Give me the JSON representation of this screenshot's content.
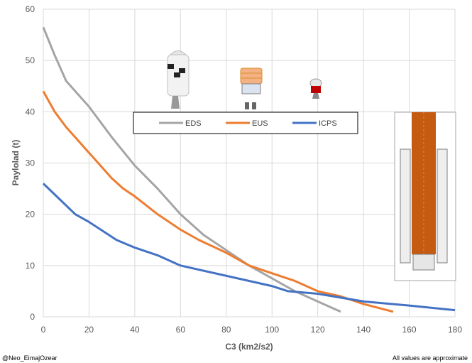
{
  "credit": "@Neo_EimajOzear",
  "note": "All values are approximate",
  "chart_data": {
    "type": "line",
    "title": "",
    "xlabel": "C3 (km2/s2)",
    "ylabel": "Paylolad (t)",
    "xlim": [
      0,
      180
    ],
    "ylim": [
      0,
      60
    ],
    "xticks": [
      0,
      20,
      40,
      60,
      80,
      100,
      120,
      140,
      160,
      180
    ],
    "yticks": [
      0,
      10,
      20,
      30,
      40,
      50,
      60
    ],
    "grid": "vertical and horizontal",
    "legend": "top-center, boxed",
    "series": [
      {
        "name": "EDS",
        "color": "#a5a5a5",
        "x": [
          0,
          5,
          10,
          15,
          20,
          30,
          40,
          50,
          60,
          70,
          80,
          90,
          100,
          110,
          120,
          130
        ],
        "y": [
          56.5,
          51,
          46,
          43.5,
          41,
          35,
          29.5,
          25,
          20,
          16,
          13,
          10,
          7.5,
          5,
          3,
          1
        ]
      },
      {
        "name": "EUS",
        "color": "#ed7d31",
        "x": [
          0,
          5,
          10,
          14,
          20,
          30,
          35,
          40,
          50,
          60,
          68,
          80,
          90,
          100,
          110,
          120,
          130,
          140,
          153
        ],
        "y": [
          44,
          40,
          37,
          35,
          32,
          27,
          25,
          23.5,
          20,
          17,
          15,
          12.5,
          10,
          8.5,
          7,
          5,
          4,
          2.5,
          1
        ]
      },
      {
        "name": "ICPS",
        "color": "#4472c4",
        "x": [
          0,
          7,
          14,
          20,
          32,
          40,
          50,
          60,
          80,
          100,
          107,
          120,
          140,
          160,
          180
        ],
        "y": [
          26,
          23,
          20,
          18.5,
          15,
          13.5,
          12,
          10,
          8,
          6,
          5,
          4.5,
          3,
          2.2,
          1.3
        ]
      }
    ]
  }
}
